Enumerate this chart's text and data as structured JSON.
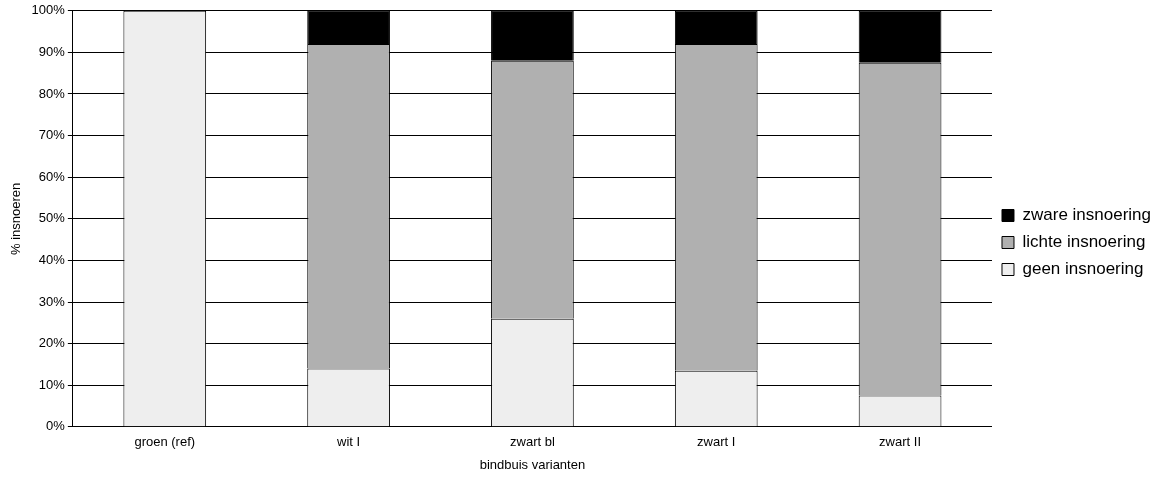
{
  "chart_data": {
    "type": "bar",
    "stacked": true,
    "xlabel": "bindbuis varianten",
    "ylabel": "% insnoeren",
    "categories": [
      "groen (ref)",
      "wit I",
      "zwart bl",
      "zwart I",
      "zwart II"
    ],
    "series": [
      {
        "name": "geen insnoering",
        "color": "#eeeeee",
        "values": [
          100,
          14,
          26,
          13.5,
          7.5
        ]
      },
      {
        "name": "lichte insnoering",
        "color": "#b0b0b0",
        "values": [
          0,
          78,
          62,
          78.5,
          80
        ]
      },
      {
        "name": "zware insnoering",
        "color": "#000000",
        "values": [
          0,
          8,
          12,
          8,
          12.5
        ]
      }
    ],
    "ylim": [
      0,
      100
    ],
    "yticks": [
      {
        "value": 0,
        "label": "0%"
      },
      {
        "value": 10,
        "label": "10%"
      },
      {
        "value": 20,
        "label": "20%"
      },
      {
        "value": 30,
        "label": "30%"
      },
      {
        "value": 40,
        "label": "40%"
      },
      {
        "value": 50,
        "label": "50%"
      },
      {
        "value": 60,
        "label": "60%"
      },
      {
        "value": 70,
        "label": "70%"
      },
      {
        "value": 80,
        "label": "80%"
      },
      {
        "value": 90,
        "label": "90%"
      },
      {
        "value": 100,
        "label": "100%"
      }
    ],
    "grid": "y",
    "legend": "right"
  }
}
